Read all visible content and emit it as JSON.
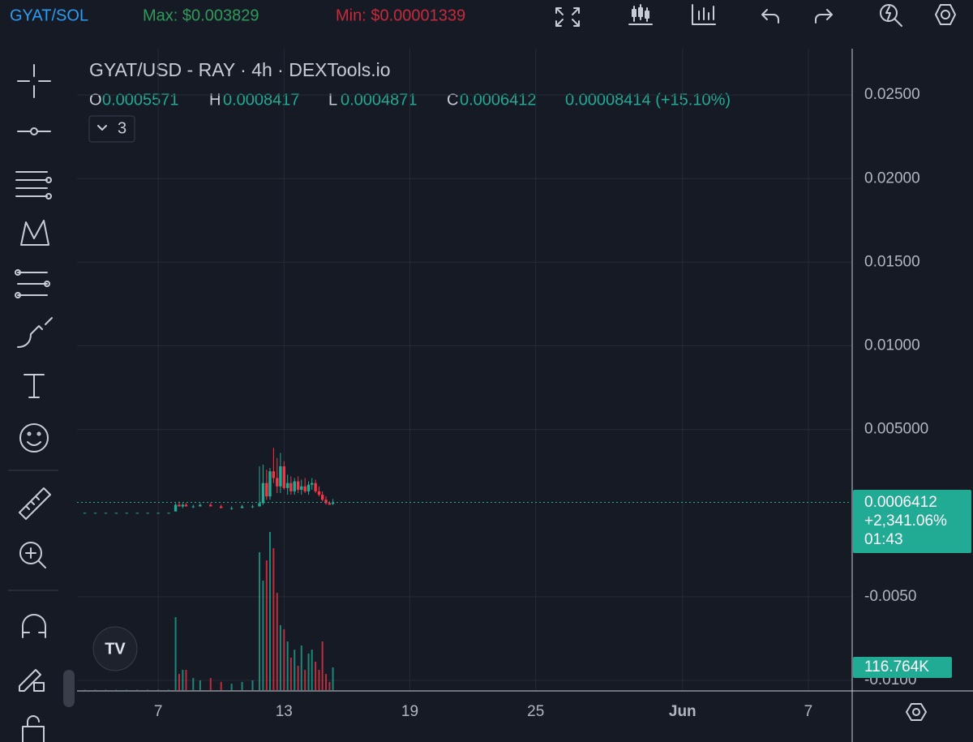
{
  "header": {
    "pair": "GYAT/SOL",
    "max": "Max: $0.003829",
    "min": "Min: $0.00001339"
  },
  "legend": {
    "title": "GYAT/USD - RAY · 4h · DEXTools.io",
    "o": "O",
    "h": "H",
    "l": "L",
    "c": "C",
    "change": "0.00008414 (+15.10%)",
    "indicators": "3"
  },
  "chart_data": {
    "type": "candlestick",
    "x": [
      3.5,
      4,
      4.5,
      5,
      5.5,
      6,
      6.5,
      7,
      7.5,
      7.83,
      8.0,
      8.17,
      8.33,
      8.67,
      9.0,
      9.5,
      10.0,
      10.5,
      11.0,
      11.5,
      11.83,
      12.0,
      12.17,
      12.33,
      12.5,
      12.67,
      12.83,
      13.0,
      13.17,
      13.33,
      13.5,
      13.67,
      13.83,
      14.0,
      14.17,
      14.33,
      14.5,
      14.67,
      14.83,
      15.0,
      15.17,
      15.33
    ],
    "open": [
      2e-05,
      2e-05,
      2e-05,
      2e-05,
      2e-05,
      2e-05,
      2e-05,
      2e-05,
      2e-05,
      0.0001,
      0.0005,
      0.0004,
      0.0005,
      0.0004,
      0.0004,
      0.0005,
      0.0004,
      0.0003,
      0.0003,
      0.0004,
      0.0004,
      0.0006,
      0.0018,
      0.001,
      0.0025,
      0.0021,
      0.0016,
      0.0028,
      0.0015,
      0.0018,
      0.0013,
      0.0019,
      0.0014,
      0.0016,
      0.0013,
      0.0017,
      0.0018,
      0.0013,
      0.0011,
      0.0008,
      0.0006,
      0.0005571
    ],
    "high": [
      2e-05,
      2e-05,
      2e-05,
      2e-05,
      2e-05,
      2e-05,
      2e-05,
      2e-05,
      2e-05,
      0.0006,
      0.0007,
      0.0006,
      0.0006,
      0.0005,
      0.0006,
      0.0006,
      0.0005,
      0.0004,
      0.0005,
      0.0005,
      0.0028,
      0.0029,
      0.0026,
      0.0027,
      0.0039,
      0.0033,
      0.0036,
      0.0031,
      0.0023,
      0.0022,
      0.0021,
      0.0022,
      0.002,
      0.0021,
      0.0019,
      0.0021,
      0.002,
      0.0016,
      0.0013,
      0.001,
      0.0007,
      0.0008417
    ],
    "low": [
      2e-05,
      2e-05,
      2e-05,
      2e-05,
      2e-05,
      2e-05,
      2e-05,
      2e-05,
      2e-05,
      0.0001,
      0.0004,
      0.0003,
      0.0004,
      0.0003,
      0.0004,
      0.0004,
      0.0003,
      0.0002,
      0.0003,
      0.0003,
      0.0004,
      0.0005,
      0.0008,
      0.0008,
      0.0018,
      0.0012,
      0.0012,
      0.0014,
      0.0011,
      0.0011,
      0.0011,
      0.0012,
      0.0011,
      0.0012,
      0.0011,
      0.0014,
      0.0012,
      0.001,
      0.0007,
      0.0005,
      0.0005,
      0.0004871
    ],
    "close": [
      2e-05,
      2e-05,
      2e-05,
      2e-05,
      2e-05,
      2e-05,
      2e-05,
      2e-05,
      2e-05,
      0.0005,
      0.0004,
      0.0005,
      0.0004,
      0.0004,
      0.0005,
      0.0004,
      0.0003,
      0.0003,
      0.0004,
      0.0004,
      0.0006,
      0.0018,
      0.001,
      0.0025,
      0.0021,
      0.0016,
      0.0028,
      0.0015,
      0.0018,
      0.0013,
      0.0019,
      0.0014,
      0.0016,
      0.0013,
      0.0017,
      0.0018,
      0.0013,
      0.0011,
      0.0008,
      0.0006,
      0.0005,
      0.0006412
    ],
    "up_color": "#22ab94",
    "down_color": "#f23645",
    "volume": {
      "values": [
        2000,
        2000,
        2000,
        2000,
        2000,
        2000,
        2000,
        2000,
        2000,
        375000,
        83000,
        104000,
        104000,
        62000,
        50000,
        62000,
        42000,
        33000,
        42000,
        50000,
        709000,
        563000,
        667000,
        813000,
        730000,
        500000,
        334000,
        313000,
        250000,
        167000,
        208000,
        125000,
        229000,
        104000,
        188000,
        208000,
        146000,
        104000,
        250000,
        83000,
        42000,
        116764
      ],
      "last_label": "116.764K"
    },
    "last_change": "+2,341.06%",
    "countdown": "01:43",
    "xlim": [
      3.13,
      40.05
    ],
    "xticks": [
      7,
      13,
      19,
      25,
      {
        "value": 32,
        "label": "Jun"
      },
      {
        "value": 38,
        "label": "7"
      }
    ],
    "ylim": [
      -0.01058,
      0.02777
    ],
    "yticks": [
      {
        "value": 0.025,
        "label": "0.02500"
      },
      {
        "value": 0.02,
        "label": "0.02000"
      },
      {
        "value": 0.015,
        "label": "0.01500"
      },
      {
        "value": 0.01,
        "label": "0.01000"
      },
      {
        "value": 0.005,
        "label": "0.005000"
      },
      {
        "value": -0.005,
        "label": "-0.0050"
      },
      {
        "value": -0.01,
        "label": "-0.0100"
      }
    ],
    "grid": true
  }
}
